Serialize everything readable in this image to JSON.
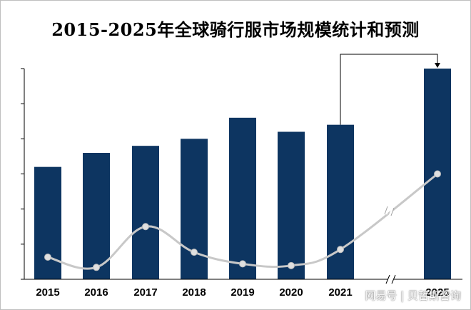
{
  "chart_data": {
    "type": "bar",
    "title": "2015-2025年全球骑行服市场规模统计和预测",
    "categories": [
      "2015",
      "2016",
      "2017",
      "2018",
      "2019",
      "2020",
      "2021",
      "2025"
    ],
    "series": [
      {
        "type": "bar",
        "values": [
          32,
          36,
          38,
          40,
          46,
          42,
          44,
          60
        ]
      },
      {
        "type": "line",
        "values": [
          6.3,
          3.4,
          15,
          7.7,
          4.4,
          3.9,
          8.5,
          30
        ]
      }
    ],
    "ylim": [
      0,
      60
    ],
    "axis_break_after": "2021",
    "annotation": "arrow from 2021 to 2025",
    "grid": false,
    "colors": {
      "bar": "#0d3561",
      "line": "#c8c8c8",
      "marker": "#e0e0e0",
      "axis": "#000000"
    }
  },
  "watermark": "网易号 | 贝哲斯咨询"
}
